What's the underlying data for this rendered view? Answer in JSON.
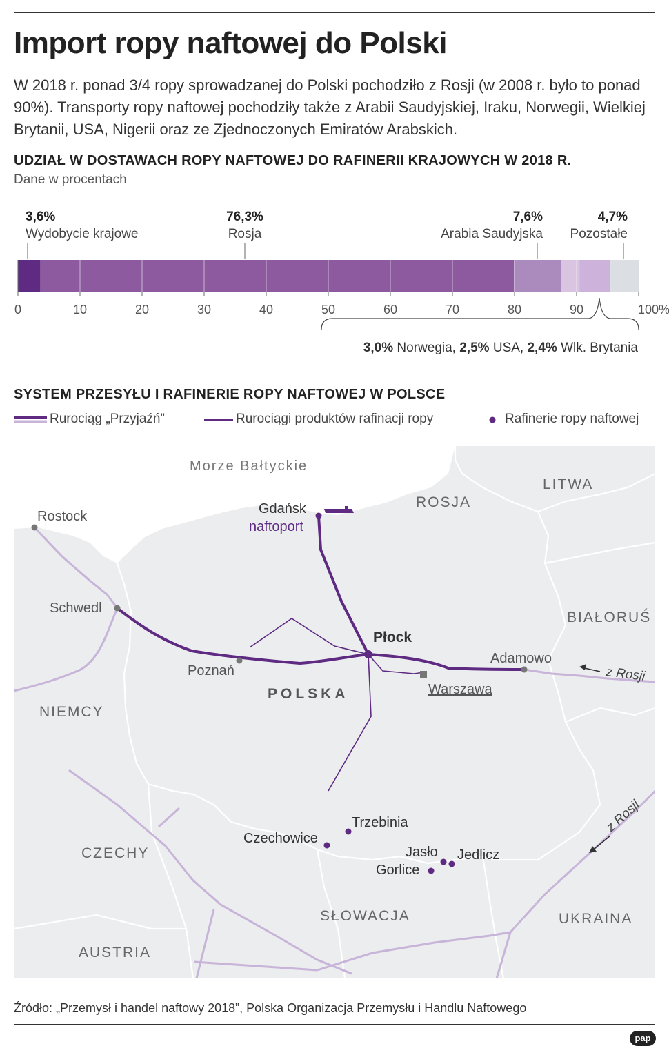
{
  "title": "Import ropy naftowej do Polski",
  "lead": "W 2018 r. ponad 3/4 ropy sprowadzanej do Polski pochodziło z Rosji (w 2008 r. było to ponad 90%). Transporty ropy naftowej pochodziły także z Arabii Saudyjskiej, Iraku, Norwegii, Wielkiej Brytanii, USA, Nigerii oraz ze Zjednoczonych Emiratów Arabskich.",
  "colors": {
    "crude": "#5e2a82",
    "russia": "#8d5aa0",
    "saudi": "#ab8bbd",
    "others_light": "#d9c4e2",
    "others_mid": "#cdb2db",
    "rest": "#dbdfe3",
    "pipeline_light": "#c8b4d8",
    "land": "#ebedef",
    "border": "#ffffff"
  },
  "chart_data": [
    {
      "type": "bar",
      "title": "UDZIAŁ W DOSTAWACH ROPY NAFTOWEJ DO RAFINERII KRAJOWYCH W 2018 R.",
      "subtitle": "Dane w procentach",
      "orientation": "horizontal-stacked",
      "xlim": [
        0,
        100
      ],
      "ticks": [
        "0",
        "10",
        "20",
        "30",
        "40",
        "50",
        "60",
        "70",
        "80",
        "90",
        "100%"
      ],
      "segments": [
        {
          "name": "Wydobycie krajowe",
          "value": 3.6,
          "label": "3,6%",
          "color": "#5e2a82"
        },
        {
          "name": "Rosja",
          "value": 76.3,
          "label": "76,3%",
          "color": "#8d5aa0"
        },
        {
          "name": "Arabia Saudyjska",
          "value": 7.6,
          "label": "7,6%",
          "color": "#ab8bbd"
        },
        {
          "name": "Norwegia",
          "value": 3.0,
          "label": "3,0%",
          "color": "#d9c4e2"
        },
        {
          "name": "USA",
          "value": 2.5,
          "label": "2,5%",
          "color": "#cdb2db"
        },
        {
          "name": "Wlk. Brytania",
          "value": 2.4,
          "label": "2,4%",
          "color": "#cdb2db"
        },
        {
          "name": "Pozostałe",
          "value": 4.7,
          "label": "4,7%",
          "color": "#dbdfe3"
        }
      ],
      "brace_note": [
        {
          "value": "3,0%",
          "name": "Norwegia,"
        },
        {
          "value": "2,5%",
          "name": "USA,"
        },
        {
          "value": "2,4%",
          "name": "Wlk. Brytania"
        }
      ]
    }
  ],
  "map": {
    "title": "SYSTEM PRZESYŁU I RAFINERIE ROPY NAFTOWEJ W POLSCE",
    "legend": {
      "pipeline": "Rurociąg „Przyjaźń”",
      "products": "Rurociągi produktów rafinacji ropy",
      "refineries": "Rafinerie ropy naftowej"
    },
    "sea": "Morze Bałtyckie",
    "countries": {
      "litwa": "LITWA",
      "rosja": "ROSJA",
      "bialorus": "BIAŁORUŚ",
      "niemcy": "NIEMCY",
      "polska": "POLSKA",
      "czechy": "CZECHY",
      "slowacja": "SŁOWACJA",
      "ukraina": "UKRAINA",
      "austria": "AUSTRIA"
    },
    "cities": {
      "rostock": "Rostock",
      "schwedt": "Schwedl",
      "gdansk": "Gdańsk",
      "naftoport": "naftoport",
      "poznan": "Poznań",
      "plock": "Płock",
      "warszawa": "Warszawa",
      "adamowo": "Adamowo"
    },
    "refineries": {
      "trzebinia": "Trzebinia",
      "czechowice": "Czechowice",
      "jaslo": "Jasło",
      "jedlicz": "Jedlicz",
      "gorlice": "Gorlice"
    },
    "arrows": {
      "from_russia_east": "z Rosji",
      "from_russia_se": "z Rosji"
    }
  },
  "source": "Źródło: „Przemysł i handel naftowy 2018”, Polska Organizacja Przemysłu i Handlu Naftowego",
  "logo": "pap"
}
